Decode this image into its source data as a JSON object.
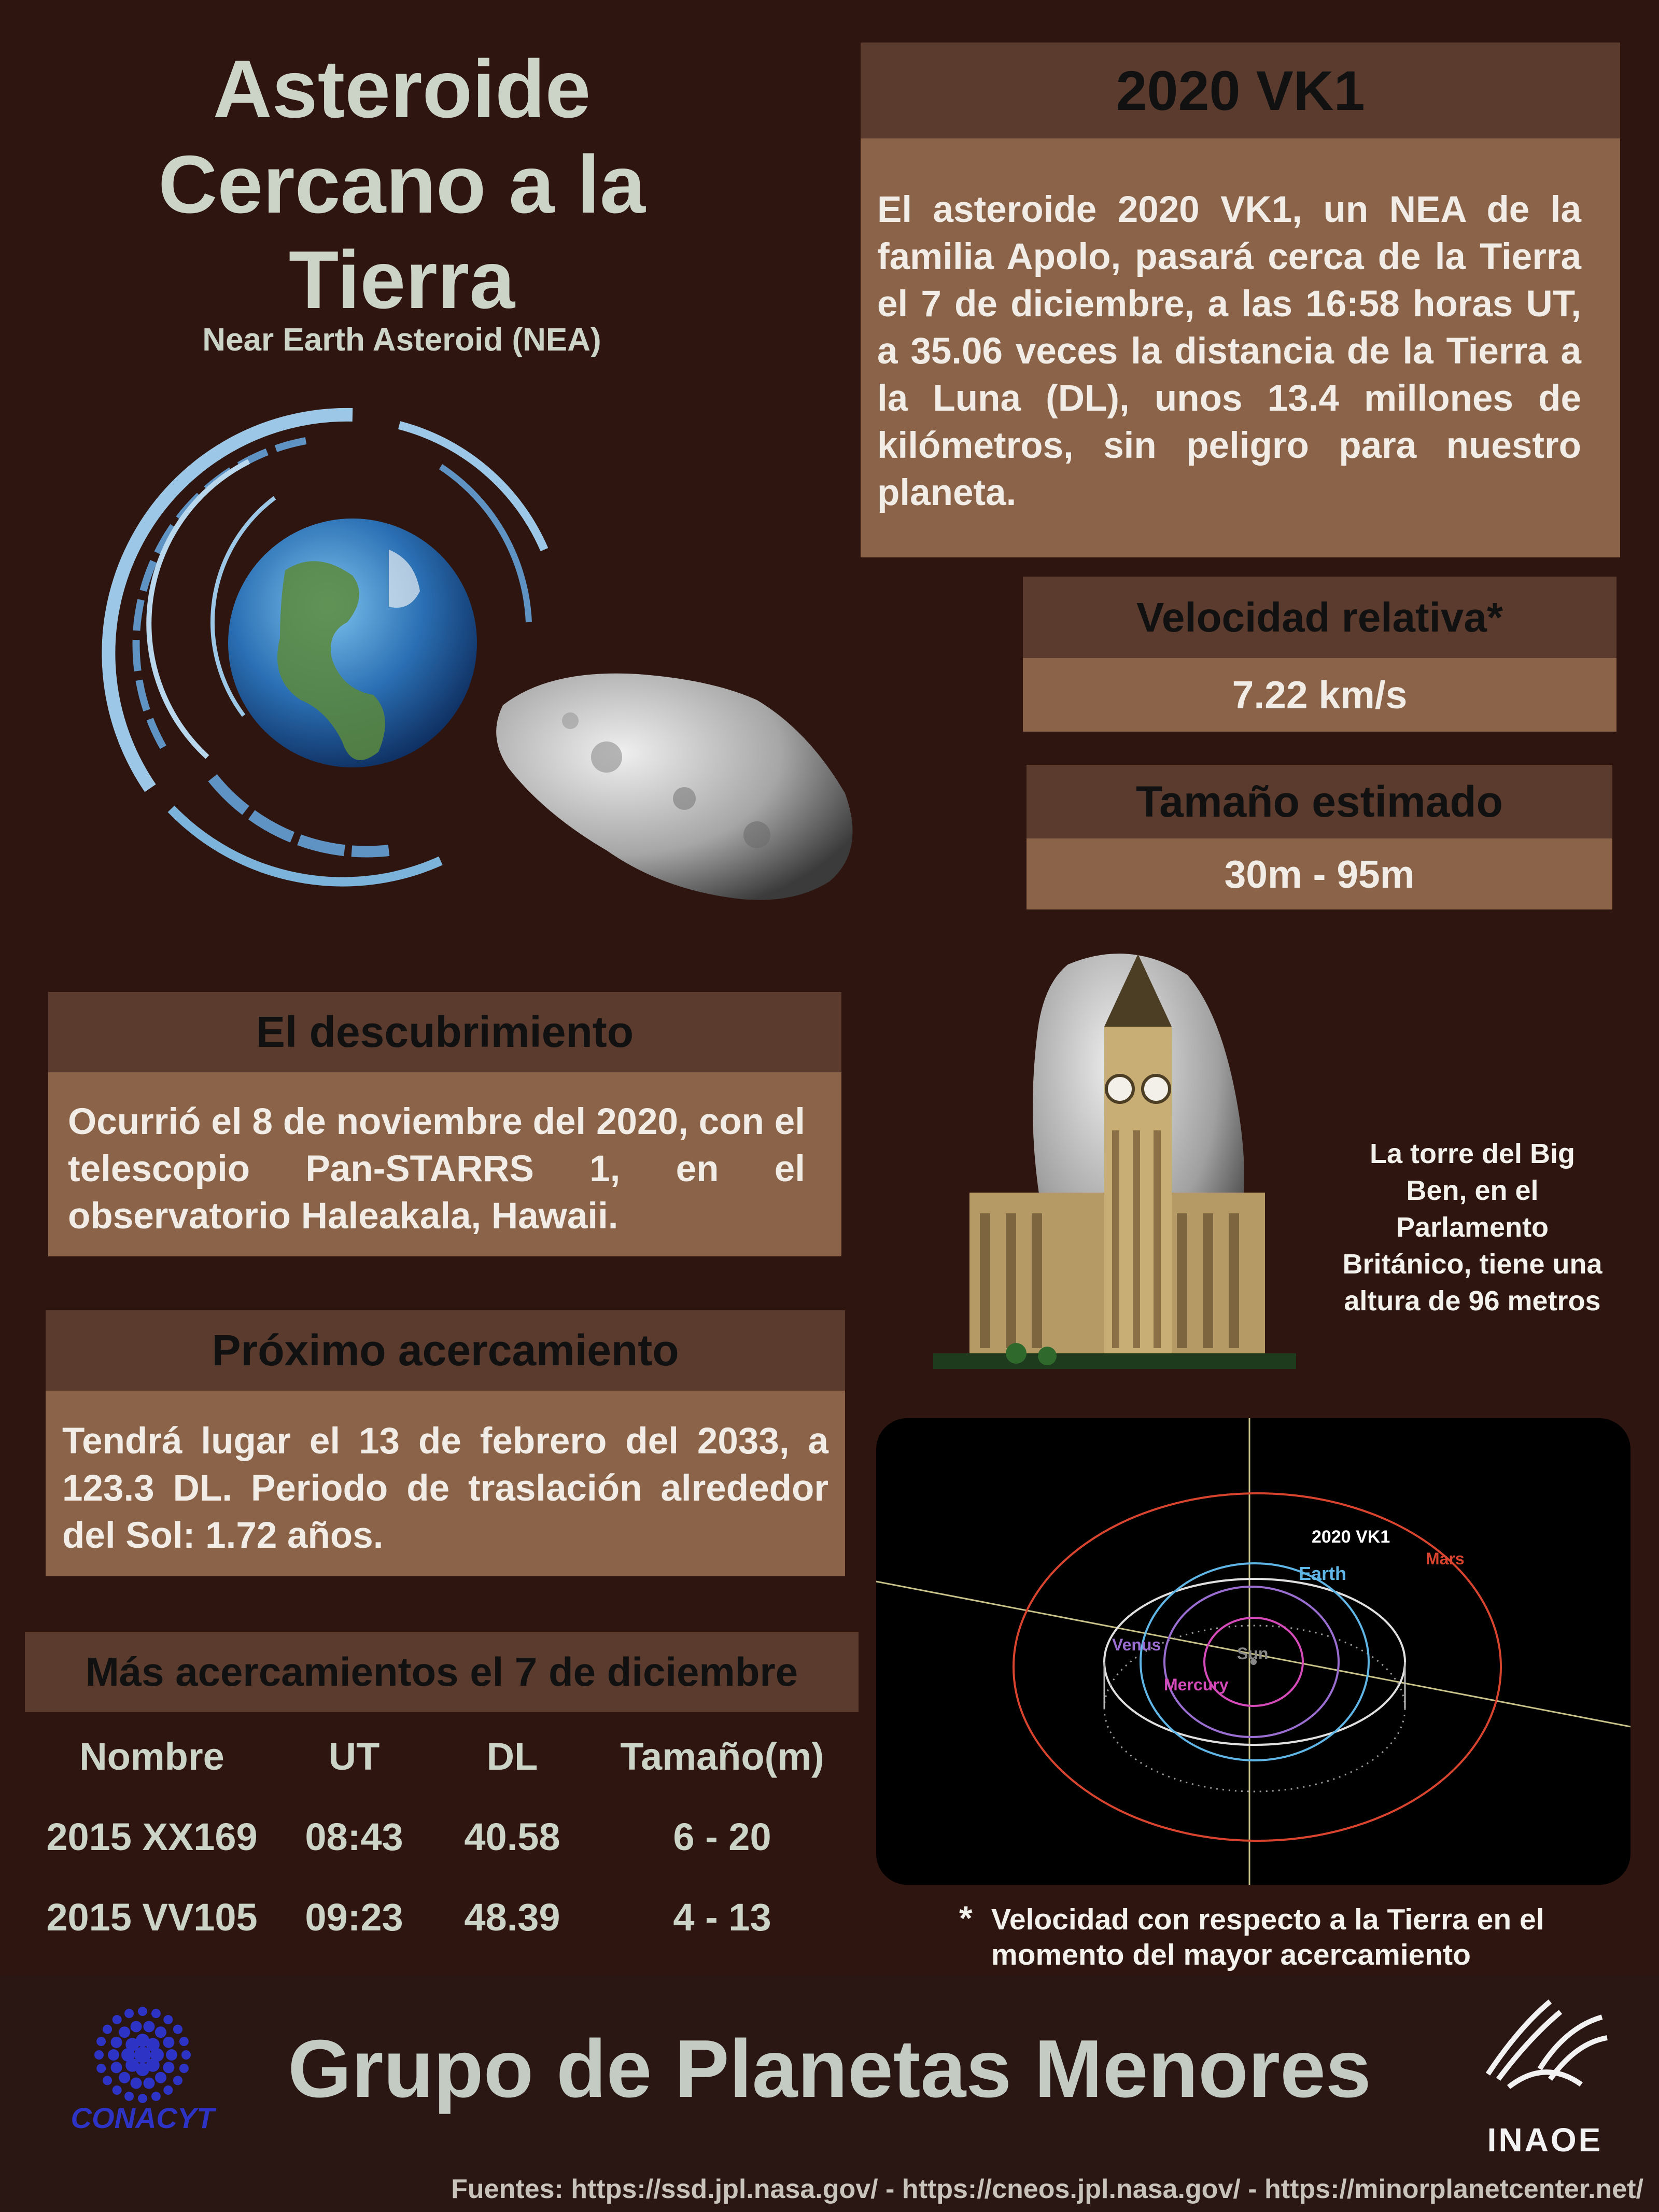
{
  "title": {
    "line1": "Asteroide",
    "line2": "Cercano a la",
    "line3": "Tierra",
    "subtitle": "Near Earth Asteroid (NEA)"
  },
  "asteroid": {
    "name": "2020  VK1",
    "description": "El  asteroide 2020 VK1, un NEA de la familia Apolo, pasará cerca de la Tierra el 7 de diciembre, a las 16:58 horas UT, a 35.06 veces la distancia de la Tierra a la Luna (DL), unos 13.4 millones de kilómetros, sin peligro para nuestro planeta."
  },
  "velocity": {
    "label": "Velocidad relativa*",
    "value": "7.22 km/s"
  },
  "size": {
    "label": "Tamaño estimado",
    "value": "30m - 95m"
  },
  "discovery": {
    "label": "El descubrimiento",
    "text": "Ocurrió el 8 de noviembre del 2020, con el telescopio Pan-STARRS 1, en el observatorio Haleakala, Hawaii."
  },
  "next_approach": {
    "label": "Próximo acercamiento",
    "text": "Tendrá lugar el 13 de febrero del 2033, a 123.3 DL. Periodo de traslación alrededor del Sol: 1.72 años."
  },
  "more_approaches": {
    "label": "Más acercamientos el 7 de diciembre",
    "headers": [
      "Nombre",
      "UT",
      "DL",
      "Tamaño(m)"
    ],
    "rows": [
      [
        "2015 XX169",
        "08:43",
        "40.58",
        "6 - 20"
      ],
      [
        "2015 VV105",
        "09:23",
        "48.39",
        "4 - 13"
      ]
    ]
  },
  "bigben_caption": {
    "line1": "La torre del Big",
    "line2": "Ben, en el",
    "line3": "Parlamento",
    "line4": "Británico, tiene una",
    "line5": "altura de 96 metros"
  },
  "orbit_diagram": {
    "labels": {
      "asteroid": "2020 VK1",
      "earth": "Earth",
      "mars": "Mars",
      "venus": "Venus",
      "mercury": "Mercury",
      "sun": "Sun"
    },
    "colors": {
      "earth": "#5fb6e6",
      "mars": "#d9442e",
      "venus": "#9a6ed0",
      "mercury": "#d44ab8",
      "sun": "#888888"
    }
  },
  "velocity_note": {
    "asterisk": "*",
    "line1": "Velocidad con respecto a la Tierra en el",
    "line2": "momento del mayor acercamiento"
  },
  "footer": {
    "group": "Grupo de Planetas Menores",
    "conacyt": "CONACYT",
    "inaoe": "INAOE",
    "sources": "Fuentes: https://ssd.jpl.nasa.gov/ - https://cneos.jpl.nasa.gov/ -  https://minorplanetcenter.net/"
  }
}
